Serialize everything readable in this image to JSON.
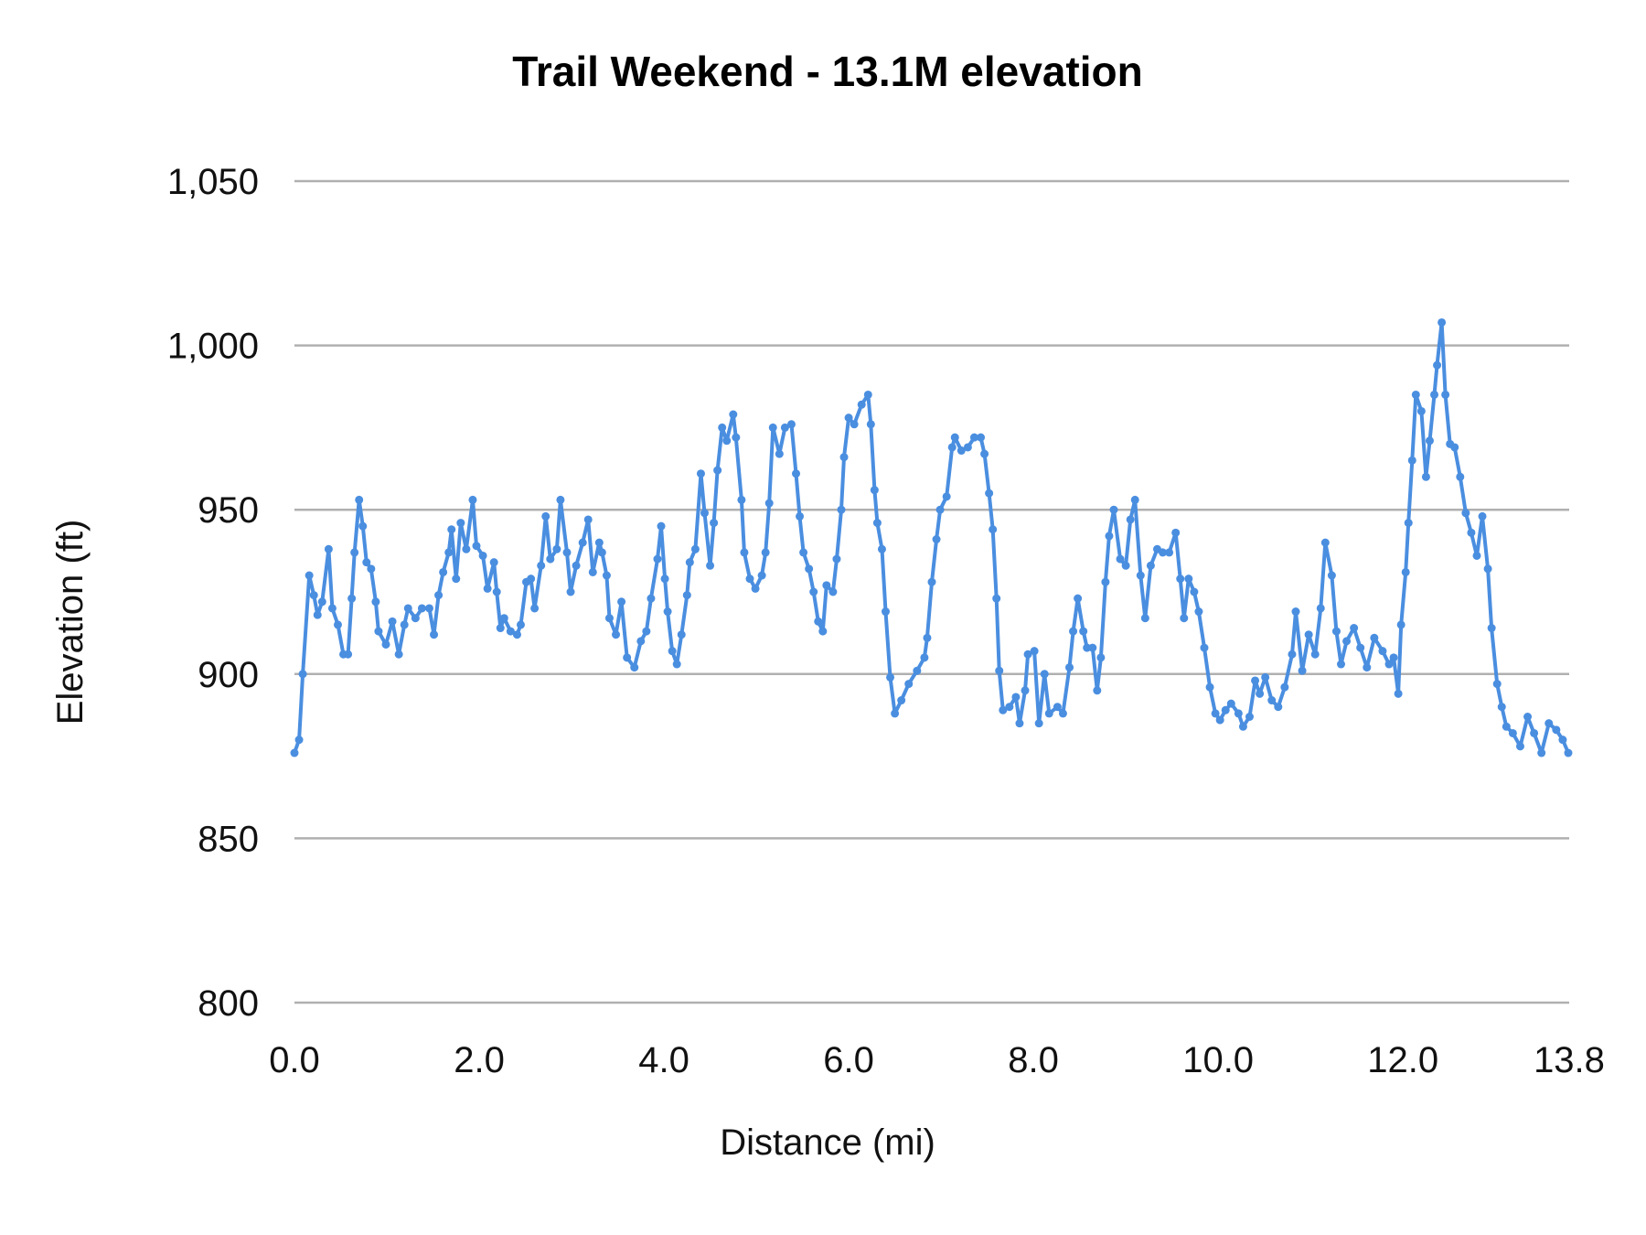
{
  "chart_data": {
    "type": "line",
    "title": "Trail Weekend - 13.1M elevation",
    "xlabel": "Distance (mi)",
    "ylabel": "Elevation (ft)",
    "xlim": [
      0.0,
      13.8
    ],
    "ylim": [
      800,
      1050
    ],
    "x_ticks": [
      "0.0",
      "2.0",
      "4.0",
      "6.0",
      "8.0",
      "10.0",
      "12.0",
      "13.8"
    ],
    "x_tick_values": [
      0,
      2,
      4,
      6,
      8,
      10,
      12,
      13.8
    ],
    "y_ticks": [
      "800",
      "850",
      "900",
      "950",
      "1,000",
      "1,050"
    ],
    "y_tick_values": [
      800,
      850,
      900,
      950,
      1000,
      1050
    ],
    "grid": "horizontal",
    "legend": "none",
    "line_color": "#4a8ee0",
    "markers": true,
    "x": [
      0.0,
      0.05,
      0.09,
      0.16,
      0.21,
      0.25,
      0.3,
      0.37,
      0.41,
      0.47,
      0.53,
      0.58,
      0.62,
      0.65,
      0.7,
      0.74,
      0.78,
      0.83,
      0.88,
      0.91,
      0.99,
      1.06,
      1.13,
      1.19,
      1.23,
      1.31,
      1.38,
      1.46,
      1.51,
      1.56,
      1.61,
      1.67,
      1.7,
      1.75,
      1.8,
      1.86,
      1.93,
      1.97,
      2.04,
      2.09,
      2.16,
      2.19,
      2.23,
      2.27,
      2.34,
      2.41,
      2.45,
      2.51,
      2.56,
      2.6,
      2.67,
      2.72,
      2.77,
      2.84,
      2.88,
      2.95,
      2.99,
      3.05,
      3.12,
      3.18,
      3.23,
      3.3,
      3.33,
      3.38,
      3.41,
      3.48,
      3.54,
      3.6,
      3.68,
      3.75,
      3.81,
      3.86,
      3.93,
      3.97,
      4.01,
      4.04,
      4.09,
      4.14,
      4.19,
      4.25,
      4.28,
      4.34,
      4.4,
      4.44,
      4.5,
      4.54,
      4.58,
      4.63,
      4.68,
      4.75,
      4.78,
      4.84,
      4.87,
      4.93,
      4.99,
      5.06,
      5.1,
      5.14,
      5.18,
      5.25,
      5.31,
      5.38,
      5.43,
      5.47,
      5.51,
      5.57,
      5.62,
      5.67,
      5.72,
      5.76,
      5.83,
      5.87,
      5.92,
      5.95,
      6.0,
      6.06,
      6.14,
      6.21,
      6.24,
      6.28,
      6.31,
      6.36,
      6.4,
      6.45,
      6.5,
      6.57,
      6.65,
      6.74,
      6.82,
      6.85,
      6.9,
      6.95,
      6.99,
      7.06,
      7.12,
      7.15,
      7.22,
      7.29,
      7.36,
      7.43,
      7.47,
      7.52,
      7.56,
      7.6,
      7.63,
      7.67,
      7.74,
      7.81,
      7.85,
      7.91,
      7.94,
      8.01,
      8.06,
      8.12,
      8.17,
      8.26,
      8.32,
      8.39,
      8.43,
      8.48,
      8.54,
      8.58,
      8.64,
      8.69,
      8.73,
      8.78,
      8.82,
      8.87,
      8.94,
      9.0,
      9.05,
      9.1,
      9.16,
      9.21,
      9.27,
      9.34,
      9.4,
      9.47,
      9.54,
      9.59,
      9.63,
      9.68,
      9.74,
      9.79,
      9.85,
      9.91,
      9.97,
      10.02,
      10.08,
      10.14,
      10.22,
      10.27,
      10.34,
      10.4,
      10.45,
      10.51,
      10.58,
      10.65,
      10.72,
      10.8,
      10.84,
      10.91,
      10.98,
      11.05,
      11.11,
      11.16,
      11.23,
      11.28,
      11.33,
      11.39,
      11.47,
      11.54,
      11.61,
      11.69,
      11.78,
      11.85,
      11.9,
      11.95,
      11.98,
      12.03,
      12.06,
      12.1,
      12.14,
      12.2,
      12.25,
      12.29,
      12.34,
      12.37,
      12.42,
      12.46,
      12.51,
      12.56,
      12.62,
      12.68,
      12.74,
      12.8,
      12.86,
      12.92,
      12.96,
      13.02,
      13.07,
      13.12,
      13.19,
      13.27,
      13.35,
      13.42,
      13.5,
      13.58,
      13.66,
      13.73,
      13.79
    ],
    "y": [
      876,
      880,
      900,
      930,
      924,
      918,
      922,
      938,
      920,
      915,
      906,
      906,
      923,
      937,
      953,
      945,
      934,
      932,
      922,
      913,
      909,
      916,
      906,
      915,
      920,
      917,
      920,
      920,
      912,
      924,
      931,
      937,
      944,
      929,
      946,
      938,
      953,
      939,
      936,
      926,
      934,
      925,
      914,
      917,
      913,
      912,
      915,
      928,
      929,
      920,
      933,
      948,
      935,
      938,
      953,
      937,
      925,
      933,
      940,
      947,
      931,
      940,
      937,
      930,
      917,
      912,
      922,
      905,
      902,
      910,
      913,
      923,
      935,
      945,
      929,
      919,
      907,
      903,
      912,
      924,
      934,
      938,
      961,
      949,
      933,
      946,
      962,
      975,
      971,
      979,
      972,
      953,
      937,
      929,
      926,
      930,
      937,
      952,
      975,
      967,
      975,
      976,
      961,
      948,
      937,
      932,
      925,
      916,
      913,
      927,
      925,
      935,
      950,
      966,
      978,
      976,
      982,
      985,
      976,
      956,
      946,
      938,
      919,
      899,
      888,
      892,
      897,
      901,
      905,
      911,
      928,
      941,
      950,
      954,
      969,
      972,
      968,
      969,
      972,
      972,
      967,
      955,
      944,
      923,
      901,
      889,
      890,
      893,
      885,
      895,
      906,
      907,
      885,
      900,
      888,
      890,
      888,
      902,
      913,
      923,
      913,
      908,
      908,
      895,
      905,
      928,
      942,
      950,
      935,
      933,
      947,
      953,
      930,
      917,
      933,
      938,
      937,
      937,
      943,
      929,
      917,
      929,
      925,
      919,
      908,
      896,
      888,
      886,
      889,
      891,
      888,
      884,
      887,
      898,
      894,
      899,
      892,
      890,
      896,
      906,
      919,
      901,
      912,
      906,
      920,
      940,
      930,
      913,
      903,
      910,
      914,
      908,
      902,
      911,
      907,
      903,
      905,
      894,
      915,
      931,
      946,
      965,
      985,
      980,
      960,
      971,
      985,
      994,
      1007,
      985,
      970,
      969,
      960,
      949,
      943,
      936,
      948,
      932,
      914,
      897,
      890,
      884,
      882,
      878,
      887,
      882,
      876,
      885,
      883,
      880,
      876
    ]
  }
}
